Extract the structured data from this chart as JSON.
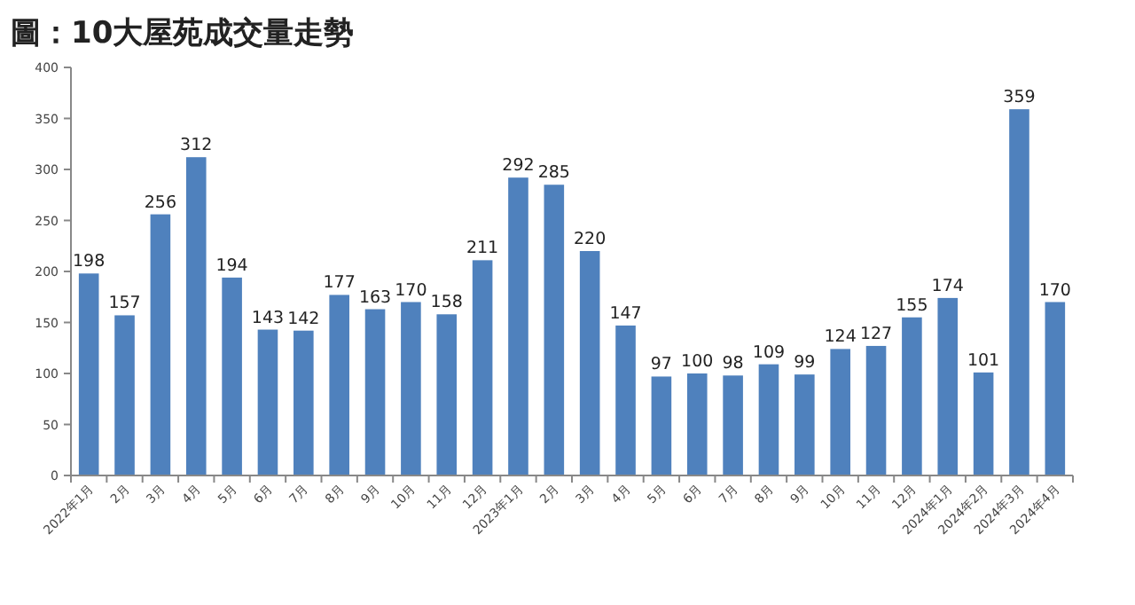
{
  "chart_data": {
    "type": "bar",
    "title": "圖：10大屋苑成交量走勢",
    "categories": [
      "2022年1月",
      "2月",
      "3月",
      "4月",
      "5月",
      "6月",
      "7月",
      "8月",
      "9月",
      "10月",
      "11月",
      "12月",
      "2023年1月",
      "2月",
      "3月",
      "4月",
      "5月",
      "6月",
      "7月",
      "8月",
      "9月",
      "10月",
      "11月",
      "12月",
      "2024年1月",
      "2024年2月",
      "2024年3月",
      "2024年4月"
    ],
    "values": [
      198,
      157,
      256,
      312,
      194,
      143,
      142,
      177,
      163,
      170,
      158,
      211,
      292,
      285,
      220,
      147,
      97,
      100,
      98,
      109,
      99,
      124,
      127,
      155,
      174,
      101,
      359,
      170
    ],
    "color": "#4f81bd",
    "ylim": [
      0,
      400
    ],
    "yticks": [
      0,
      50,
      100,
      150,
      200,
      250,
      300,
      350,
      400
    ],
    "data_labels": true,
    "grid": false
  }
}
